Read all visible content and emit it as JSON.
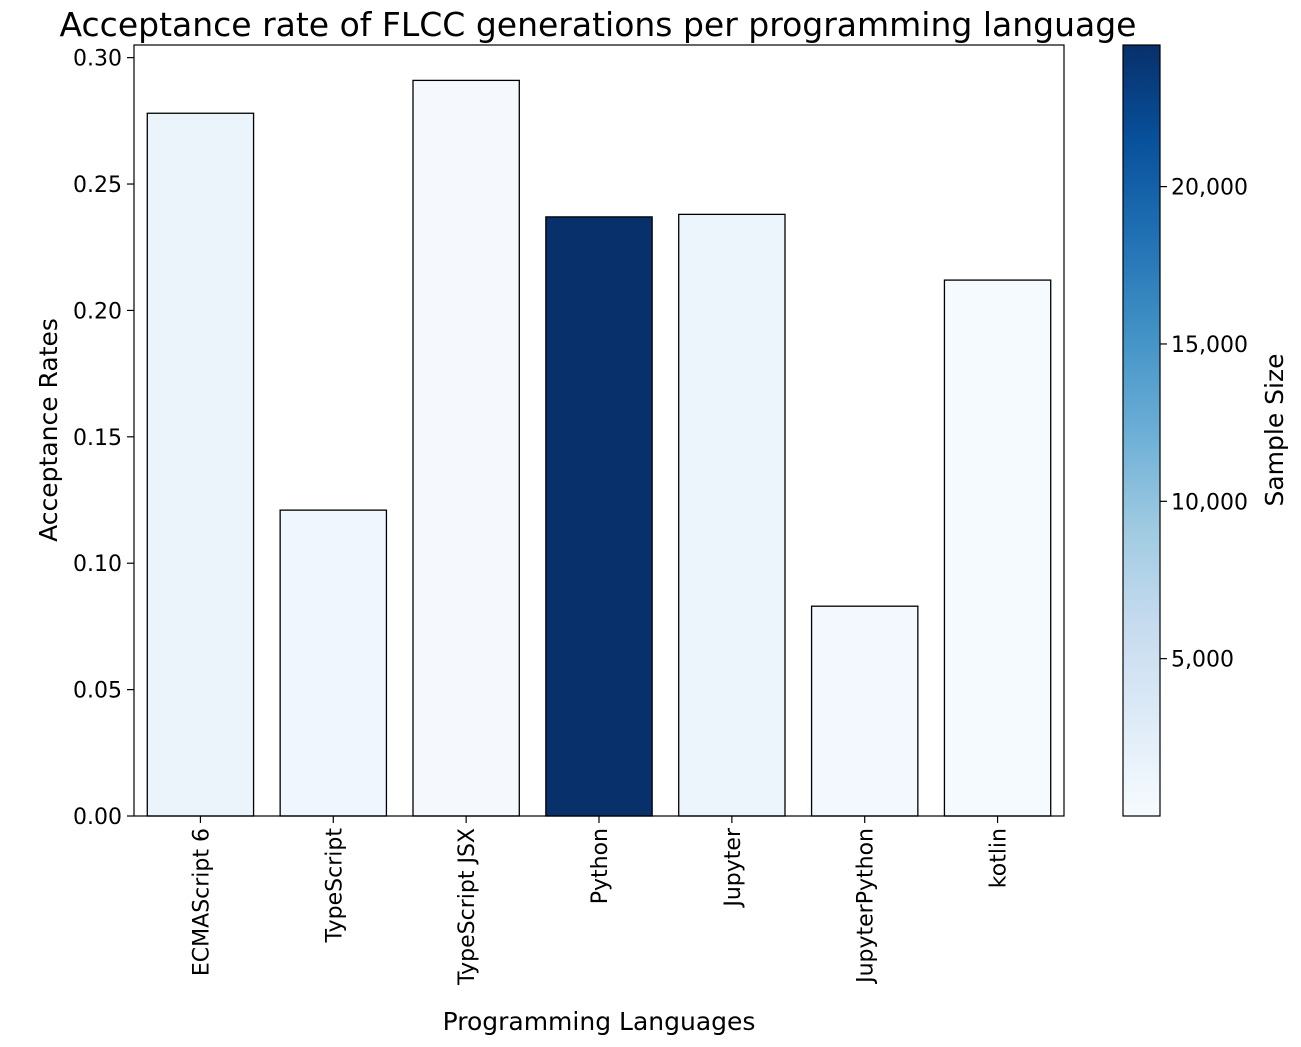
{
  "chart_data": {
    "type": "bar",
    "title": "Acceptance rate of FLCC generations per programming language",
    "xlabel": "Programming Languages",
    "ylabel": "Acceptance Rates",
    "categories": [
      "ECMAScript 6",
      "TypeScript",
      "TypeScript JSX",
      "Python",
      "Jupyter",
      "JupyterPython",
      "kotlin"
    ],
    "values": [
      0.278,
      0.121,
      0.291,
      0.237,
      0.238,
      0.083,
      0.212
    ],
    "sample_sizes": [
      1500,
      900,
      300,
      24500,
      1300,
      500,
      250
    ],
    "ylim": [
      0,
      0.305
    ],
    "yticks": [
      0.0,
      0.05,
      0.1,
      0.15,
      0.2,
      0.25,
      0.3
    ],
    "ytick_labels": [
      "0.00",
      "0.05",
      "0.10",
      "0.15",
      "0.20",
      "0.25",
      "0.30"
    ],
    "grid": false,
    "colorbar": {
      "label": "Sample Size",
      "colormap": "Blues",
      "range": [
        0,
        24500
      ],
      "ticks": [
        5000,
        10000,
        15000,
        20000
      ],
      "tick_labels": [
        "5,000",
        "10,000",
        "15,000",
        "20,000"
      ],
      "colors": [
        "#f7fbff",
        "#deebf7",
        "#c6dbef",
        "#9ecae1",
        "#6baed6",
        "#4292c6",
        "#2171b5",
        "#08519c",
        "#08306b"
      ]
    },
    "bar_edge_color": "#000000"
  }
}
